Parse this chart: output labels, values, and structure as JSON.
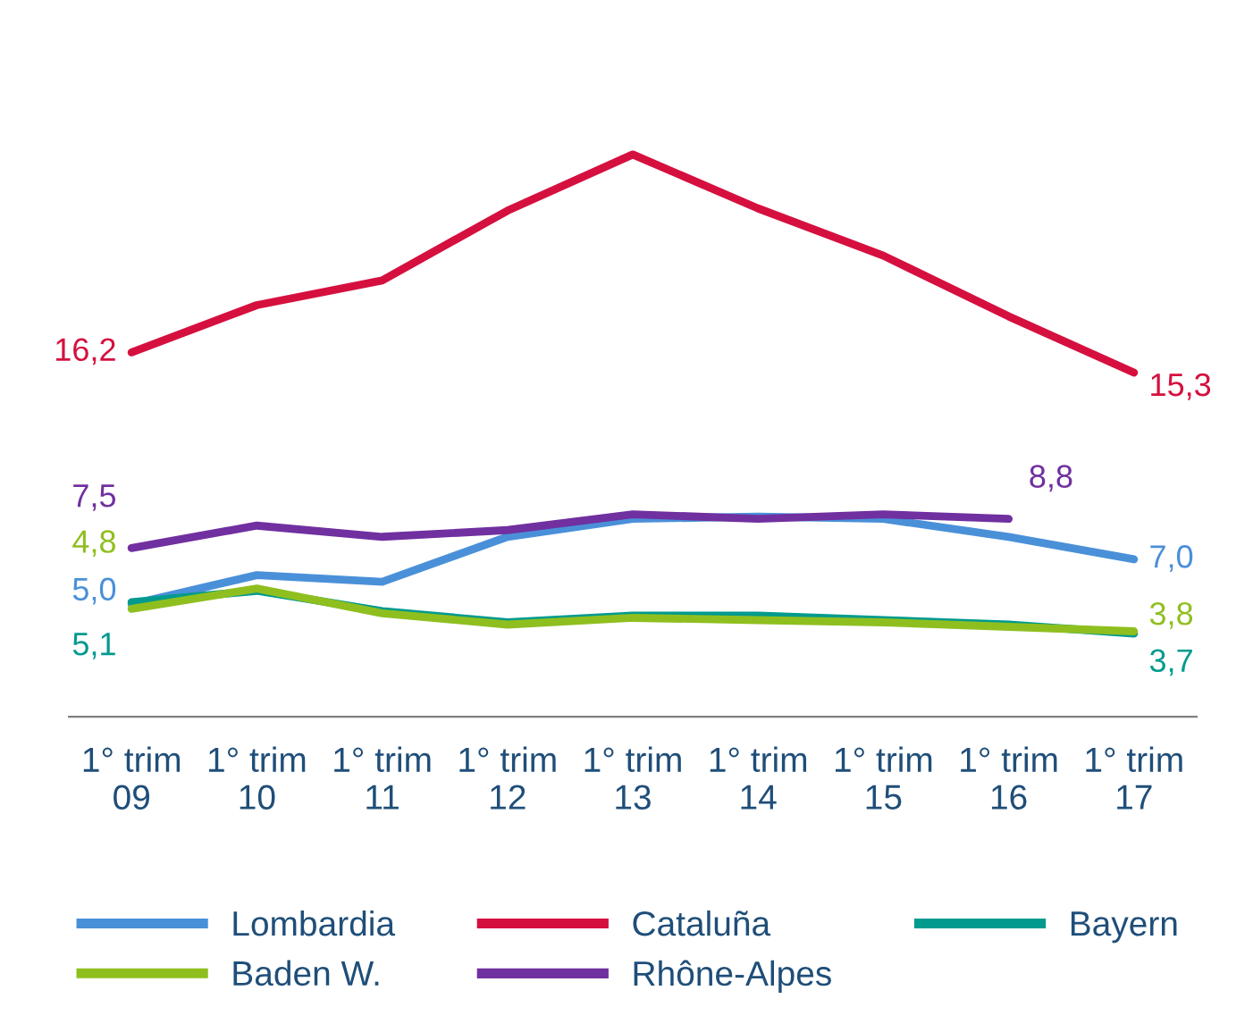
{
  "chart_data": {
    "type": "line",
    "categories": [
      "1° trim\n09",
      "1° trim\n10",
      "1° trim\n11",
      "1° trim\n12",
      "1° trim\n13",
      "1° trim\n14",
      "1° trim\n15",
      "1° trim\n16",
      "1° trim\n17"
    ],
    "tick_labels": "x",
    "grid": false,
    "legend": "bottom",
    "line_style": "solid",
    "marker": "none",
    "series": [
      {
        "name": "Lombardia",
        "color": "#4a90d9",
        "values": [
          5.0,
          6.3,
          6.0,
          8.0,
          8.8,
          8.9,
          8.8,
          8.0,
          7.0
        ],
        "value_labels": [
          "5,0",
          null,
          null,
          null,
          null,
          null,
          null,
          null,
          "7,0"
        ]
      },
      {
        "name": "Cataluña",
        "color": "#d5103f",
        "values": [
          16.2,
          18.3,
          19.4,
          22.5,
          25.0,
          22.6,
          20.5,
          17.8,
          15.3
        ],
        "value_labels": [
          "16,2",
          null,
          null,
          null,
          null,
          null,
          null,
          null,
          "15,3"
        ]
      },
      {
        "name": "Bayern",
        "color": "#009a8e",
        "values": [
          5.1,
          5.6,
          4.7,
          4.2,
          4.5,
          4.5,
          4.3,
          4.1,
          3.7
        ],
        "value_labels": [
          "5,1",
          null,
          null,
          null,
          null,
          null,
          null,
          null,
          "3,7"
        ]
      },
      {
        "name": "Baden W.",
        "color": "#8fbf1f",
        "values": [
          4.8,
          5.7,
          4.6,
          4.1,
          4.4,
          4.3,
          4.2,
          4.0,
          3.8
        ],
        "value_labels": [
          "4,8",
          null,
          null,
          null,
          null,
          null,
          null,
          null,
          "3,8"
        ]
      },
      {
        "name": "Rhône-Alpes",
        "color": "#7030a0",
        "values": [
          7.5,
          8.5,
          8.0,
          8.3,
          9.0,
          8.8,
          9.0,
          8.8,
          null
        ],
        "value_labels": [
          "7,5",
          null,
          null,
          null,
          null,
          null,
          null,
          "8,8",
          null
        ]
      }
    ]
  }
}
